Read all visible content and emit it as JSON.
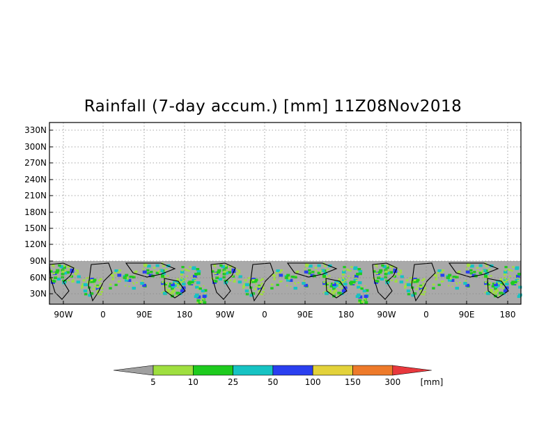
{
  "title": "Rainfall (7-day accum.) [mm] 11Z08Nov2018",
  "y_ticks": [
    "330N",
    "300N",
    "270N",
    "240N",
    "210N",
    "180N",
    "150N",
    "120N",
    "90N",
    "60N",
    "30N"
  ],
  "x_ticks": [
    "90W",
    "0",
    "90E",
    "180",
    "90W",
    "0",
    "90E",
    "180",
    "90W",
    "0",
    "90E",
    "180"
  ],
  "colorbar": {
    "labels": [
      "5",
      "10",
      "25",
      "50",
      "100",
      "150",
      "300"
    ],
    "unit": "[mm]",
    "colors": [
      "#a0a0a0",
      "#9fdf3f",
      "#1ecb1e",
      "#16c3c3",
      "#2a3ff0",
      "#e3d23a",
      "#ee7a2a",
      "#e8383d"
    ]
  },
  "map": {
    "masked_color": "#a9a9a9",
    "rain_colors": [
      "#9fdf3f",
      "#1ecb1e",
      "#16c3c3",
      "#2a3ff0"
    ]
  }
}
